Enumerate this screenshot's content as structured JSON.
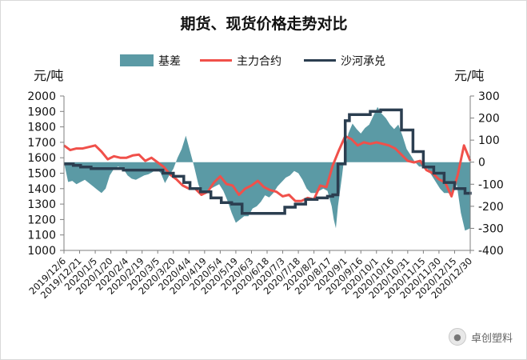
{
  "chart_data": {
    "type": "line",
    "title": "期货、现货价格走势对比",
    "left_unit": "元/吨",
    "right_unit": "元/吨",
    "legend": [
      "基差",
      "主力合约",
      "沙河承兑"
    ],
    "left_axis": {
      "min": 1000,
      "max": 2000,
      "step": 100,
      "ticks": [
        "1000",
        "1100",
        "1200",
        "1300",
        "1400",
        "1500",
        "1600",
        "1700",
        "1800",
        "1900",
        "2000"
      ]
    },
    "right_axis": {
      "min": -400,
      "max": 300,
      "step": 100,
      "ticks": [
        "-400",
        "-300",
        "-200",
        "-100",
        "0",
        "100",
        "200",
        "300"
      ]
    },
    "x_tick_labels": [
      "2019/12/6",
      "2019/12/21",
      "2020/1/5",
      "2020/1/20",
      "2020/2/4",
      "2020/2/19",
      "2020/3/5",
      "2020/3/20",
      "2020/4/4",
      "2020/4/19",
      "2020/5/4",
      "2020/5/19",
      "2020/6/3",
      "2020/6/18",
      "2020/7/3",
      "2020/7/18",
      "2020/8/2",
      "2020/8/17",
      "2020/9/1",
      "2020/9/16",
      "2020/10/1",
      "2020/10/16",
      "2020/10/31",
      "2020/11/15",
      "2020/11/30",
      "2020/12/15",
      "2020/12/30"
    ],
    "colors": {
      "basis": "#5b9aa5",
      "futures": "#f0504a",
      "spot": "#2b3e50"
    },
    "series": [
      {
        "name": "基差",
        "axis": "right",
        "x": [
          "2019/12/6",
          "2019/12/10",
          "2019/12/14",
          "2019/12/18",
          "2019/12/22",
          "2019/12/26",
          "2019/12/30",
          "2020/1/3",
          "2020/1/7",
          "2020/1/11",
          "2020/1/15",
          "2020/1/19",
          "2020/1/23",
          "2020/1/27",
          "2020/2/1",
          "2020/2/5",
          "2020/2/9",
          "2020/2/13",
          "2020/2/17",
          "2020/2/21",
          "2020/2/25",
          "2020/2/29",
          "2020/3/4",
          "2020/3/8",
          "2020/3/12",
          "2020/3/16",
          "2020/3/20",
          "2020/3/24",
          "2020/3/28",
          "2020/4/1",
          "2020/4/5",
          "2020/4/9",
          "2020/4/13",
          "2020/4/17",
          "2020/4/21",
          "2020/4/25",
          "2020/4/29",
          "2020/5/3",
          "2020/5/7",
          "2020/5/11",
          "2020/5/15",
          "2020/5/19",
          "2020/5/23",
          "2020/5/27",
          "2020/5/31",
          "2020/6/4",
          "2020/6/8",
          "2020/6/12",
          "2020/6/16",
          "2020/6/20",
          "2020/6/24",
          "2020/6/28",
          "2020/7/2",
          "2020/7/6",
          "2020/7/10",
          "2020/7/14",
          "2020/7/18",
          "2020/7/22",
          "2020/7/26",
          "2020/7/30",
          "2020/8/3",
          "2020/8/7",
          "2020/8/11",
          "2020/8/15",
          "2020/8/19",
          "2020/8/21",
          "2020/8/23",
          "2020/8/25",
          "2020/8/27",
          "2020/8/29",
          "2020/9/1",
          "2020/9/4",
          "2020/9/8",
          "2020/9/12",
          "2020/9/16",
          "2020/9/20",
          "2020/9/24",
          "2020/9/28",
          "2020/10/2",
          "2020/10/6",
          "2020/10/10",
          "2020/10/14",
          "2020/10/18",
          "2020/10/22",
          "2020/10/26",
          "2020/10/30",
          "2020/11/3",
          "2020/11/7",
          "2020/11/11",
          "2020/11/15",
          "2020/11/19",
          "2020/11/23",
          "2020/11/27",
          "2020/12/1",
          "2020/12/5",
          "2020/12/9",
          "2020/12/13",
          "2020/12/17",
          "2020/12/21",
          "2020/12/25",
          "2020/12/30"
        ],
        "values": [
          0,
          -90,
          -85,
          -100,
          -90,
          -80,
          -95,
          -110,
          -125,
          -140,
          -120,
          -60,
          -30,
          -20,
          -30,
          -60,
          -75,
          -80,
          -70,
          -60,
          -55,
          -45,
          -30,
          -50,
          -95,
          -60,
          -30,
          20,
          60,
          120,
          50,
          -20,
          -100,
          -150,
          -140,
          -120,
          -110,
          -100,
          -130,
          -175,
          -230,
          -275,
          -260,
          -245,
          -245,
          -210,
          -200,
          -180,
          -150,
          -160,
          -140,
          -110,
          -90,
          -70,
          -60,
          -40,
          -50,
          -80,
          -120,
          -140,
          -140,
          -130,
          -120,
          -130,
          -200,
          -260,
          -300,
          -200,
          -130,
          -60,
          60,
          130,
          175,
          150,
          130,
          155,
          170,
          210,
          250,
          220,
          200,
          170,
          150,
          170,
          120,
          60,
          30,
          0,
          -20,
          -20,
          -30,
          -60,
          -90,
          -120,
          -140,
          -140,
          -150,
          -100,
          -230,
          -310,
          -300
        ]
      },
      {
        "name": "主力合约",
        "axis": "left",
        "x": [
          "2019/12/6",
          "2019/12/12",
          "2019/12/18",
          "2019/12/24",
          "2019/12/30",
          "2020/1/5",
          "2020/1/11",
          "2020/1/17",
          "2020/1/23",
          "2020/1/29",
          "2020/2/4",
          "2020/2/10",
          "2020/2/16",
          "2020/2/22",
          "2020/2/28",
          "2020/3/5",
          "2020/3/11",
          "2020/3/17",
          "2020/3/23",
          "2020/3/29",
          "2020/4/4",
          "2020/4/10",
          "2020/4/16",
          "2020/4/22",
          "2020/4/28",
          "2020/5/4",
          "2020/5/10",
          "2020/5/16",
          "2020/5/22",
          "2020/5/28",
          "2020/6/3",
          "2020/6/9",
          "2020/6/15",
          "2020/6/21",
          "2020/6/27",
          "2020/7/3",
          "2020/7/9",
          "2020/7/15",
          "2020/7/21",
          "2020/7/27",
          "2020/8/2",
          "2020/8/8",
          "2020/8/14",
          "2020/8/20",
          "2020/8/26",
          "2020/9/1",
          "2020/9/7",
          "2020/9/13",
          "2020/9/19",
          "2020/9/25",
          "2020/10/1",
          "2020/10/7",
          "2020/10/13",
          "2020/10/19",
          "2020/10/25",
          "2020/10/31",
          "2020/11/6",
          "2020/11/12",
          "2020/11/18",
          "2020/11/24",
          "2020/11/30",
          "2020/12/6",
          "2020/12/12",
          "2020/12/18",
          "2020/12/24",
          "2020/12/30"
        ],
        "values": [
          1680,
          1650,
          1660,
          1660,
          1670,
          1680,
          1640,
          1590,
          1610,
          1600,
          1600,
          1615,
          1620,
          1580,
          1600,
          1570,
          1540,
          1490,
          1460,
          1420,
          1400,
          1400,
          1360,
          1380,
          1440,
          1480,
          1430,
          1420,
          1360,
          1400,
          1420,
          1450,
          1410,
          1390,
          1380,
          1350,
          1360,
          1320,
          1320,
          1340,
          1330,
          1420,
          1410,
          1550,
          1650,
          1740,
          1720,
          1680,
          1700,
          1690,
          1700,
          1690,
          1680,
          1660,
          1620,
          1580,
          1570,
          1580,
          1520,
          1500,
          1460,
          1440,
          1350,
          1490,
          1680,
          1580
        ]
      },
      {
        "name": "沙河承兑",
        "axis": "left",
        "x": [
          "2019/12/6",
          "2019/12/15",
          "2019/12/22",
          "2020/1/1",
          "2020/1/10",
          "2020/1/20",
          "2020/2/1",
          "2020/2/10",
          "2020/2/20",
          "2020/3/1",
          "2020/3/10",
          "2020/3/20",
          "2020/3/30",
          "2020/4/5",
          "2020/4/15",
          "2020/4/25",
          "2020/5/5",
          "2020/5/15",
          "2020/5/25",
          "2020/6/5",
          "2020/6/15",
          "2020/6/25",
          "2020/7/5",
          "2020/7/15",
          "2020/7/25",
          "2020/8/5",
          "2020/8/15",
          "2020/8/20",
          "2020/8/25",
          "2020/9/1",
          "2020/9/5",
          "2020/9/15",
          "2020/9/25",
          "2020/10/5",
          "2020/10/15",
          "2020/10/25",
          "2020/11/5",
          "2020/11/15",
          "2020/11/25",
          "2020/12/5",
          "2020/12/15",
          "2020/12/25",
          "2020/12/30"
        ],
        "values": [
          1560,
          1550,
          1540,
          1530,
          1530,
          1530,
          1520,
          1520,
          1520,
          1520,
          1500,
          1480,
          1440,
          1400,
          1380,
          1340,
          1310,
          1300,
          1240,
          1240,
          1240,
          1240,
          1280,
          1300,
          1330,
          1340,
          1350,
          1360,
          1560,
          1840,
          1880,
          1880,
          1900,
          1910,
          1910,
          1780,
          1640,
          1540,
          1500,
          1440,
          1400,
          1370,
          1380
        ]
      }
    ]
  },
  "watermark": {
    "text": "卓创塑料",
    "icon": "wechat-icon"
  }
}
